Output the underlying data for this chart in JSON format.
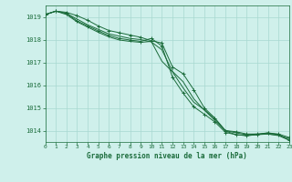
{
  "background_color": "#cff0eb",
  "grid_color": "#a8d8d0",
  "line_color": "#1a6b3a",
  "title": "Graphe pression niveau de la mer (hPa)",
  "xlim": [
    0,
    23
  ],
  "ylim": [
    1013.5,
    1019.5
  ],
  "yticks": [
    1014,
    1015,
    1016,
    1017,
    1018,
    1019
  ],
  "xticks": [
    0,
    1,
    2,
    3,
    4,
    5,
    6,
    7,
    8,
    9,
    10,
    11,
    12,
    13,
    14,
    15,
    16,
    17,
    18,
    19,
    20,
    21,
    22,
    23
  ],
  "series": [
    {
      "x": [
        0,
        1,
        2,
        3,
        4,
        5,
        6,
        7,
        8,
        9,
        10,
        11,
        12,
        13,
        14,
        15,
        16,
        17,
        18,
        19,
        20,
        21,
        22,
        23
      ],
      "y": [
        1019.1,
        1019.25,
        1019.2,
        1019.05,
        1018.85,
        1018.6,
        1018.4,
        1018.3,
        1018.2,
        1018.1,
        1017.95,
        1017.85,
        1016.8,
        1016.5,
        1015.8,
        1015.0,
        1014.55,
        1014.0,
        1013.95,
        1013.85,
        1013.85,
        1013.9,
        1013.85,
        1013.7
      ],
      "marker": "+"
    },
    {
      "x": [
        0,
        1,
        2,
        3,
        4,
        5,
        6,
        7,
        8,
        9,
        10,
        11,
        12,
        13,
        14,
        15,
        16,
        17,
        18,
        19,
        20,
        21,
        22,
        23
      ],
      "y": [
        1019.1,
        1019.25,
        1019.15,
        1018.9,
        1018.65,
        1018.45,
        1018.25,
        1018.15,
        1018.05,
        1018.0,
        1017.9,
        1017.55,
        1016.6,
        1016.15,
        1015.4,
        1014.9,
        1014.45,
        1014.0,
        1013.9,
        1013.82,
        1013.85,
        1013.85,
        1013.8,
        1013.65
      ],
      "marker": null
    },
    {
      "x": [
        0,
        1,
        2,
        3,
        4,
        5,
        6,
        7,
        8,
        9,
        10,
        11,
        12,
        13,
        14,
        15,
        16,
        17,
        18,
        19,
        20,
        21,
        22,
        23
      ],
      "y": [
        1019.1,
        1019.25,
        1019.15,
        1018.82,
        1018.6,
        1018.38,
        1018.18,
        1018.05,
        1017.98,
        1017.92,
        1018.05,
        1017.72,
        1016.35,
        1015.65,
        1015.05,
        1014.72,
        1014.38,
        1013.92,
        1013.82,
        1013.78,
        1013.82,
        1013.9,
        1013.82,
        1013.58
      ],
      "marker": "+"
    },
    {
      "x": [
        0,
        1,
        2,
        3,
        4,
        5,
        6,
        7,
        8,
        9,
        10,
        11,
        12,
        13,
        14,
        15,
        16,
        17,
        18,
        19,
        20,
        21,
        22,
        23
      ],
      "y": [
        1019.1,
        1019.25,
        1019.1,
        1018.78,
        1018.55,
        1018.32,
        1018.12,
        1017.98,
        1017.92,
        1017.88,
        1017.92,
        1017.05,
        1016.58,
        1015.88,
        1015.25,
        1014.92,
        1014.52,
        1013.98,
        1013.82,
        1013.78,
        1013.82,
        1013.85,
        1013.78,
        1013.58
      ],
      "marker": null
    }
  ]
}
